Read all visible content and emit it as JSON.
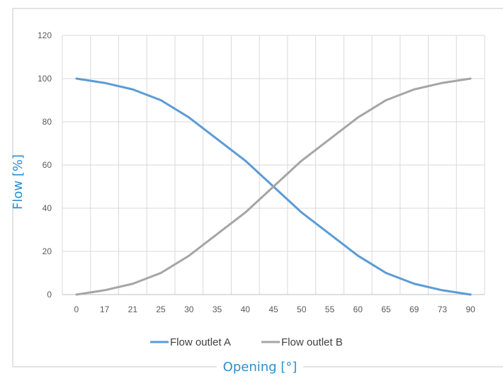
{
  "chart_data": {
    "type": "line",
    "title": "",
    "xlabel": "Opening [°]",
    "ylabel": "Flow [%]",
    "categories": [
      "0",
      "17",
      "21",
      "25",
      "30",
      "35",
      "40",
      "45",
      "50",
      "55",
      "60",
      "65",
      "69",
      "73",
      "90"
    ],
    "ylim": [
      0,
      120
    ],
    "yticks": [
      0,
      20,
      40,
      60,
      80,
      100,
      120
    ],
    "grid": true,
    "legend": "bottom",
    "series": [
      {
        "name": "Flow outlet A",
        "color": "#5b9bd5",
        "values": [
          100,
          98,
          95,
          90,
          82,
          72,
          62,
          50,
          38,
          28,
          18,
          10,
          5,
          2,
          0
        ]
      },
      {
        "name": "Flow outlet B",
        "color": "#a5a5a5",
        "values": [
          0,
          2,
          5,
          10,
          18,
          28,
          38,
          50,
          62,
          72,
          82,
          90,
          95,
          98,
          100
        ]
      }
    ]
  },
  "colors": {
    "axis_title": "#2a8fd1",
    "grid": "#d9d9d9",
    "frame": "#c8c8c8"
  }
}
